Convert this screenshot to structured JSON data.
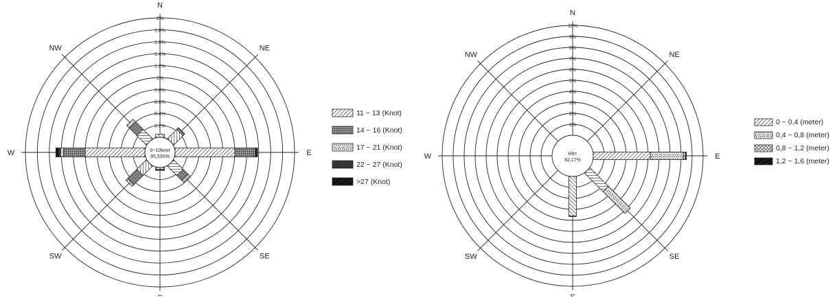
{
  "chart_data": [
    {
      "type": "rose",
      "unit_label": "Knot",
      "directions": [
        "N",
        "NE",
        "E",
        "SE",
        "S",
        "SW",
        "W",
        "NW"
      ],
      "radial_ticks": [
        "0.2%",
        "0.4%",
        "0.6%",
        "0.8%",
        "1%",
        "1.2%",
        "1.4%",
        "1.6%",
        "1.8%",
        "2%"
      ],
      "rmax": 2.0,
      "calm": {
        "line1": "0~10knot",
        "line2": "95,535%"
      },
      "legend": [
        {
          "label": "11 ~ 13 (Knot)",
          "pattern": "hatch"
        },
        {
          "label": "14 ~ 16 (Knot)",
          "pattern": "dots"
        },
        {
          "label": "17 ~ 21 (Knot)",
          "pattern": "speckle"
        },
        {
          "label": "22 ~ 27 (Knot)",
          "pattern": "dark"
        },
        {
          "label": ">27 (Knot)",
          "pattern": "black"
        }
      ],
      "series": [
        {
          "name": "11 ~ 13 (Knot)",
          "values": [
            0.05,
            0.22,
            1.0,
            0.22,
            0.03,
            0.22,
            1.0,
            0.22
          ]
        },
        {
          "name": "14 ~ 16 (Knot)",
          "values": [
            0.0,
            0.04,
            0.32,
            0.12,
            0.02,
            0.22,
            0.36,
            0.18
          ]
        },
        {
          "name": "17 ~ 21 (Knot)",
          "values": [
            0.0,
            0.0,
            0.02,
            0.04,
            0.0,
            0.04,
            0.05,
            0.06
          ]
        },
        {
          "name": "22 ~ 27 (Knot)",
          "values": [
            0.0,
            0.0,
            0.02,
            0.0,
            0.0,
            0.0,
            0.04,
            0.0
          ]
        },
        {
          "name": ">27 (Knot)",
          "values": [
            0.0,
            0.0,
            0.02,
            0.0,
            0.0,
            0.0,
            0.04,
            0.0
          ]
        }
      ]
    },
    {
      "type": "rose",
      "unit_label": "meter",
      "directions": [
        "N",
        "NE",
        "E",
        "SE",
        "S",
        "SW",
        "W",
        "NW"
      ],
      "radial_ticks": [
        "1%",
        "2%",
        "3%",
        "4%",
        "5%",
        "6%",
        "7%",
        "8%",
        "9%",
        "10%"
      ],
      "rmax": 10.0,
      "calm": {
        "line1": "H0=",
        "line2": "82,17%"
      },
      "legend": [
        {
          "label": "0 ~ 0,4 (meter)",
          "pattern": "hatch"
        },
        {
          "label": "0,4 ~ 0,8 (meter)",
          "pattern": "speckle"
        },
        {
          "label": "0,8 ~ 1,2 (meter)",
          "pattern": "circles"
        },
        {
          "label": "1,2 ~ 1,6 (meter)",
          "pattern": "black"
        }
      ],
      "series": [
        {
          "name": "0 ~ 0,4 (meter)",
          "values": [
            0.0,
            0.0,
            5.2,
            2.4,
            3.6,
            0.0,
            0.0,
            0.0
          ]
        },
        {
          "name": "0,4 ~ 0,8 (meter)",
          "values": [
            0.0,
            0.0,
            3.0,
            2.8,
            0.05,
            0.0,
            0.0,
            0.0
          ]
        },
        {
          "name": "0,8 ~ 1,2 (meter)",
          "values": [
            0.0,
            0.0,
            0.2,
            0.0,
            0.0,
            0.0,
            0.0,
            0.0
          ]
        },
        {
          "name": "1,2 ~ 1,6 (meter)",
          "values": [
            0.0,
            0.0,
            0.08,
            0.0,
            0.0,
            0.0,
            0.0,
            0.0
          ]
        }
      ]
    }
  ]
}
